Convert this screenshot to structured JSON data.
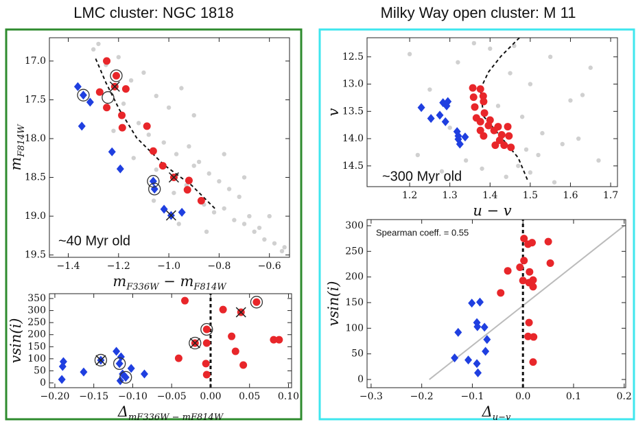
{
  "chart_data": [
    {
      "type": "scatter",
      "title": "LMC cluster: NGC 1818",
      "xlabel": [
        {
          "text": "m"
        },
        {
          "text": "F336W",
          "sub": true
        },
        {
          "text": " − m"
        },
        {
          "text": "F814W",
          "sub": true
        }
      ],
      "ylabel": [
        {
          "text": "m"
        },
        {
          "text": "F814W",
          "sub": true
        }
      ],
      "annotation": "~40 Myr old",
      "xlim": [
        -1.475,
        -0.52
      ],
      "ylim": [
        19.53,
        16.7
      ],
      "y_inverted": true,
      "xticks": [
        {
          "value": -1.4,
          "label": "−1.4"
        },
        {
          "value": -1.2,
          "label": "−1.2"
        },
        {
          "value": -1.0,
          "label": "−1.0"
        },
        {
          "value": -0.8,
          "label": "−0.8"
        },
        {
          "value": -0.6,
          "label": "−0.6"
        }
      ],
      "yticks": [
        {
          "value": 17.0,
          "label": "17.0"
        },
        17.5,
        {
          "value": 18.0,
          "label": "18.0"
        },
        18.5,
        {
          "value": 19.0,
          "label": "19.0"
        },
        19.5
      ],
      "series": [
        {
          "marker": "dot",
          "color": "#c4c4c4",
          "x": [
            -1.3,
            -1.25,
            -1.2,
            -1.15,
            -1.1,
            -1.05,
            -1.0,
            -0.95,
            -0.9,
            -1.28,
            -1.18,
            -1.12,
            -1.08,
            -1.02,
            -0.97,
            -0.92,
            -0.88,
            -0.84,
            -0.8,
            -0.76,
            -1.05,
            -0.98,
            -0.93,
            -0.86,
            -0.82,
            -0.78,
            -0.74,
            -0.7,
            -0.66,
            -0.62,
            -0.58,
            -0.55,
            -0.72,
            -0.68,
            -0.64,
            -1.22,
            -1.14,
            -1.06,
            -0.96,
            -0.9,
            -0.85,
            -0.78,
            -0.7,
            -0.6,
            -0.54
          ],
          "values": [
            16.85,
            17.05,
            16.95,
            17.25,
            17.15,
            17.45,
            17.6,
            17.35,
            17.7,
            16.78,
            17.55,
            17.8,
            17.95,
            18.05,
            18.2,
            18.1,
            18.3,
            18.45,
            18.55,
            18.65,
            18.4,
            18.7,
            18.6,
            18.85,
            18.95,
            18.9,
            19.05,
            19.1,
            19.2,
            19.3,
            19.35,
            19.45,
            18.75,
            19.0,
            19.15,
            17.9,
            18.25,
            18.8,
            19.1,
            18.35,
            19.2,
            18.2,
            18.5,
            19.0,
            19.4
          ]
        },
        {
          "marker": "line",
          "dashed": true,
          "color": "#111111",
          "x": [
            -1.291,
            -1.25,
            -1.196,
            -1.128,
            -1.019,
            -0.91,
            -0.814
          ],
          "values": [
            16.97,
            17.28,
            17.63,
            17.99,
            18.34,
            18.6,
            18.91
          ]
        },
        {
          "marker": "circle",
          "color": "#e8262a",
          "x": [
            -1.247,
            -1.275,
            -1.209,
            -1.171,
            -1.247,
            -1.187,
            -1.185,
            -1.087,
            -1.062,
            -1.024,
            -0.92,
            -0.926,
            -0.871,
            -1.215,
            -0.98
          ],
          "values": [
            17.0,
            17.4,
            17.19,
            17.36,
            17.6,
            17.7,
            17.86,
            17.84,
            18.16,
            18.35,
            18.54,
            18.66,
            18.8,
            17.33,
            18.5
          ]
        },
        {
          "marker": "diamond",
          "color": "#1f3fe0",
          "x": [
            -1.362,
            -1.34,
            -1.313,
            -1.346,
            -1.226,
            -1.193,
            -1.062,
            -1.057,
            -1.019,
            -0.948,
            -0.991
          ],
          "values": [
            17.33,
            17.44,
            17.53,
            17.84,
            18.17,
            18.39,
            18.55,
            18.65,
            18.91,
            18.95,
            18.99
          ]
        },
        {
          "marker": "ring",
          "color": "#333333",
          "x": [
            -1.34,
            -1.209,
            -1.242,
            -1.062,
            -1.057
          ],
          "values": [
            17.44,
            17.19,
            17.47,
            18.55,
            18.65
          ]
        },
        {
          "marker": "cross",
          "color": "#222222",
          "x": [
            -1.215,
            -0.98,
            -0.991
          ],
          "values": [
            17.33,
            18.5,
            18.99
          ]
        }
      ]
    },
    {
      "type": "scatter",
      "xlabel": [
        {
          "text": "Δ"
        },
        {
          "text": "mF336W − mF814W",
          "sub": true
        }
      ],
      "ylabel": [
        {
          "text": "vsin(i)"
        }
      ],
      "xlim": [
        -0.207,
        0.104
      ],
      "ylim": [
        -20,
        370
      ],
      "xticks": [
        {
          "value": -0.2,
          "label": "−0.20"
        },
        {
          "value": -0.15,
          "label": "−0.15"
        },
        {
          "value": -0.1,
          "label": "−0.10"
        },
        {
          "value": -0.05,
          "label": "−0.05"
        },
        {
          "value": 0,
          "label": "0.00"
        },
        {
          "value": 0.05,
          "label": "0.05"
        },
        {
          "value": 0.1,
          "label": "0.10"
        }
      ],
      "yticks": [
        0,
        50,
        100,
        150,
        200,
        250,
        300,
        350
      ],
      "series": [
        {
          "marker": "line",
          "dashed": true,
          "width": 3,
          "color": "#111111",
          "x": [
            0,
            0
          ],
          "values": [
            -20,
            370
          ]
        },
        {
          "marker": "diamond",
          "color": "#1f3fe0",
          "x": [
            -0.189,
            -0.19,
            -0.191,
            -0.163,
            -0.141,
            -0.121,
            -0.115,
            -0.117,
            -0.113,
            -0.109,
            -0.102,
            -0.085,
            -0.116
          ],
          "values": [
            88,
            68,
            14,
            45,
            94,
            131,
            108,
            80,
            37,
            23,
            60,
            37,
            9
          ]
        },
        {
          "marker": "circle",
          "color": "#e8262a",
          "x": [
            -0.033,
            -0.041,
            -0.005,
            -0.006,
            -0.005,
            -0.02,
            -0.005,
            0.016,
            0.027,
            0.039,
            0.042,
            0.032,
            0.059,
            0.081,
            0.088
          ],
          "values": [
            341,
            102,
            34,
            80,
            165,
            165,
            222,
            304,
            193,
            293,
            74,
            131,
            335,
            179,
            179
          ]
        },
        {
          "marker": "ring",
          "color": "#333333",
          "x": [
            -0.141,
            -0.117,
            -0.109,
            -0.02,
            -0.005,
            0.059
          ],
          "values": [
            94,
            80,
            23,
            165,
            222,
            335
          ]
        },
        {
          "marker": "cross",
          "color": "#222222",
          "x": [
            -0.141,
            -0.02,
            0.039
          ],
          "values": [
            94,
            165,
            293
          ]
        }
      ]
    },
    {
      "type": "scatter",
      "title": "Milky Way open cluster: M 11",
      "xlabel": [
        {
          "text": "u − v"
        }
      ],
      "ylabel": [
        {
          "text": "v"
        }
      ],
      "annotation": "~300 Myr old",
      "xlim": [
        1.094,
        1.717
      ],
      "ylim": [
        14.88,
        12.15
      ],
      "y_inverted": true,
      "xticks": [
        1.2,
        1.3,
        1.4,
        1.5,
        1.6,
        1.7
      ],
      "yticks": [
        12.5,
        {
          "value": 13.0,
          "label": "13.0"
        },
        13.5,
        {
          "value": 14.0,
          "label": "14.0"
        },
        14.5
      ],
      "series": [
        {
          "marker": "dot",
          "color": "#c4c4c4",
          "x": [
            1.2,
            1.25,
            1.32,
            1.4,
            1.45,
            1.5,
            1.55,
            1.6,
            1.65,
            1.3,
            1.36,
            1.42,
            1.48,
            1.53,
            1.58,
            1.63,
            1.22,
            1.28,
            1.34,
            1.44,
            1.47,
            1.52,
            1.56,
            1.62,
            1.67,
            1.38,
            1.46,
            1.5,
            1.43,
            1.49
          ],
          "values": [
            12.45,
            13.1,
            12.6,
            12.35,
            12.8,
            13.0,
            12.5,
            13.3,
            12.7,
            13.8,
            12.25,
            13.4,
            13.6,
            13.9,
            14.1,
            13.2,
            14.3,
            14.6,
            14.4,
            14.7,
            14.5,
            14.3,
            14.8,
            14.0,
            14.4,
            14.55,
            12.3,
            14.62,
            13.95,
            14.2
          ]
        },
        {
          "marker": "line",
          "dashed": true,
          "color": "#111111",
          "x": [
            1.473,
            1.427,
            1.396,
            1.376,
            1.384,
            1.427,
            1.47,
            1.495
          ],
          "values": [
            12.15,
            12.49,
            12.78,
            13.09,
            13.59,
            13.97,
            14.35,
            14.79
          ]
        },
        {
          "marker": "diamond",
          "color": "#1f3fe0",
          "x": [
            1.229,
            1.253,
            1.275,
            1.283,
            1.292,
            1.295,
            1.289,
            1.318,
            1.321,
            1.338,
            1.325,
            1.321
          ],
          "values": [
            13.43,
            13.63,
            13.57,
            13.34,
            13.4,
            13.32,
            13.69,
            13.87,
            13.95,
            13.97,
            14.1,
            14.01
          ]
        },
        {
          "marker": "circle",
          "color": "#e8262a",
          "x": [
            1.357,
            1.376,
            1.383,
            1.384,
            1.359,
            1.362,
            1.386,
            1.366,
            1.376,
            1.396,
            1.376,
            1.384,
            1.41,
            1.42,
            1.429,
            1.444,
            1.447,
            1.424,
            1.413,
            1.435,
            1.452,
            1.4
          ],
          "values": [
            13.07,
            13.09,
            13.22,
            13.32,
            13.24,
            13.42,
            13.53,
            13.62,
            13.69,
            13.76,
            13.85,
            13.95,
            13.85,
            13.78,
            13.93,
            13.78,
            13.95,
            14.03,
            14.12,
            14.12,
            14.16,
            13.66
          ]
        }
      ]
    },
    {
      "type": "scatter",
      "xlabel": [
        {
          "text": "Δ"
        },
        {
          "text": "u−v",
          "sub": true
        }
      ],
      "ylabel": [
        {
          "text": "vsin(i)"
        }
      ],
      "annotation": "Spearman coeff. = 0.55",
      "xlim": [
        -0.308,
        0.203
      ],
      "ylim": [
        -16,
        312
      ],
      "xticks": [
        {
          "value": -0.3,
          "label": "−0.3"
        },
        {
          "value": -0.2,
          "label": "−0.2"
        },
        {
          "value": -0.1,
          "label": "−0.1"
        },
        {
          "value": 0,
          "label": "0.0"
        },
        0.1,
        0.2
      ],
      "yticks": [
        0,
        50,
        100,
        150,
        200,
        250,
        300
      ],
      "series": [
        {
          "marker": "line",
          "color": "#bbbbbb",
          "x": [
            -0.185,
            0.2
          ],
          "values": [
            0,
            300
          ]
        },
        {
          "marker": "line",
          "dashed": true,
          "width": 3,
          "color": "#111111",
          "x": [
            0,
            0
          ],
          "values": [
            -16,
            312
          ]
        },
        {
          "marker": "diamond",
          "color": "#1f3fe0",
          "x": [
            -0.101,
            -0.085,
            -0.091,
            -0.09,
            -0.076,
            -0.128,
            -0.071,
            -0.074,
            -0.108,
            -0.135,
            -0.091,
            -0.089
          ],
          "values": [
            149,
            151,
            111,
            103,
            102,
            92,
            78,
            55,
            38,
            42,
            31,
            13
          ]
        },
        {
          "marker": "circle",
          "color": "#e8262a",
          "x": [
            0.002,
            0.01,
            0.018,
            0.05,
            0.054,
            -0.03,
            -0.006,
            0.013,
            0.02,
            0.02,
            0.012,
            0.0,
            -0.044,
            0.012,
            0.01,
            0.021,
            0.02,
            0.002
          ],
          "values": [
            275,
            264,
            267,
            269,
            227,
            212,
            219,
            210,
            194,
            181,
            189,
            193,
            169,
            111,
            84,
            83,
            34,
            232
          ]
        }
      ]
    }
  ]
}
